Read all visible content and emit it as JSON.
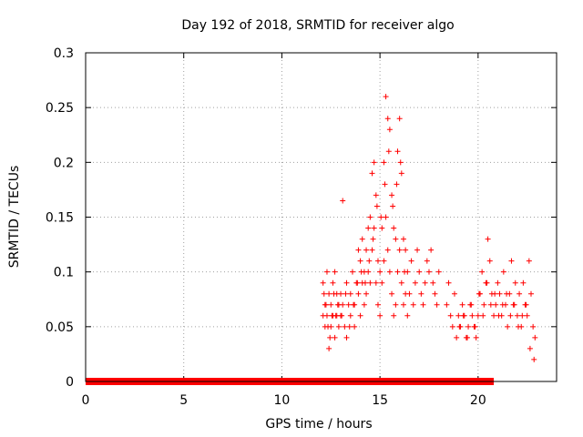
{
  "chart_data": {
    "type": "scatter",
    "title": "Day 192 of 2018, SRMTID for receiver algo",
    "xlabel": "GPS time / hours",
    "ylabel": "SRMTID / TECUs",
    "xlim": [
      0,
      24
    ],
    "ylim": [
      0,
      0.3
    ],
    "xticks": [
      0,
      5,
      10,
      15,
      20
    ],
    "yticks": [
      0,
      0.05,
      0.1,
      0.15,
      0.2,
      0.25,
      0.3
    ],
    "xtick_labels": [
      "0",
      "5",
      "10",
      "15",
      "20"
    ],
    "ytick_labels": [
      "0",
      "0.05",
      "0.1",
      "0.15",
      "0.2",
      "0.25",
      "0.3"
    ],
    "grid": true,
    "marker": "+",
    "color": "#ff0000",
    "zero_band": [
      0,
      20.8
    ],
    "series": [
      {
        "name": "SRMTID",
        "x": [
          12.1,
          12.1,
          12.2,
          12.2,
          12.3,
          12.3,
          12.4,
          12.4,
          12.5,
          12.5,
          12.6,
          12.6,
          12.7,
          12.7,
          12.8,
          12.8,
          12.9,
          12.9,
          13.0,
          13.0,
          13.1,
          13.1,
          13.2,
          13.3,
          13.3,
          13.4,
          13.5,
          13.5,
          13.6,
          13.7,
          13.7,
          13.8,
          13.9,
          13.9,
          14.0,
          14.0,
          14.1,
          14.1,
          14.2,
          14.2,
          14.3,
          14.3,
          14.4,
          14.4,
          14.5,
          14.5,
          14.6,
          14.6,
          14.7,
          14.7,
          14.8,
          14.8,
          14.9,
          14.9,
          15.0,
          15.0,
          15.1,
          15.1,
          15.2,
          15.2,
          15.3,
          15.3,
          15.4,
          15.4,
          15.5,
          15.5,
          15.6,
          15.6,
          15.7,
          15.7,
          15.8,
          15.8,
          15.9,
          15.9,
          16.0,
          16.0,
          16.1,
          16.1,
          16.2,
          16.2,
          16.3,
          16.3,
          16.4,
          16.4,
          16.5,
          16.6,
          16.7,
          16.8,
          16.9,
          17.0,
          17.1,
          17.2,
          17.3,
          17.4,
          17.5,
          17.6,
          17.7,
          17.8,
          17.9,
          18.0,
          18.4,
          18.5,
          18.6,
          18.7,
          18.8,
          18.9,
          19.0,
          19.1,
          19.2,
          19.3,
          19.4,
          19.5,
          19.6,
          19.7,
          19.8,
          19.9,
          20.0,
          20.1,
          20.2,
          20.3,
          20.4,
          20.5,
          20.6,
          20.7,
          20.8,
          20.9,
          21.0,
          21.1,
          21.2,
          21.3,
          21.4,
          21.5,
          21.6,
          21.7,
          21.8,
          21.9,
          22.0,
          22.1,
          22.2,
          22.3,
          22.4,
          22.5,
          22.6,
          22.7,
          22.8,
          22.9,
          12.15,
          12.25,
          12.35,
          12.45,
          12.55,
          12.65,
          12.75,
          12.85,
          13.05,
          13.25,
          13.45,
          13.65,
          13.85,
          14.05,
          14.25,
          14.45,
          14.65,
          14.85,
          15.05,
          15.25,
          15.45,
          15.65,
          15.85,
          16.05,
          16.25,
          19.05,
          19.25,
          19.45,
          19.65,
          19.85,
          20.05,
          20.25,
          20.45,
          20.65,
          20.85,
          21.05,
          21.25,
          21.45,
          21.65,
          21.85,
          22.05,
          22.25,
          22.45,
          22.65,
          22.85
        ],
        "y": [
          0.06,
          0.09,
          0.07,
          0.05,
          0.1,
          0.06,
          0.03,
          0.08,
          0.05,
          0.07,
          0.09,
          0.06,
          0.1,
          0.04,
          0.08,
          0.06,
          0.07,
          0.05,
          0.08,
          0.06,
          0.165,
          0.07,
          0.05,
          0.09,
          0.04,
          0.07,
          0.08,
          0.06,
          0.1,
          0.07,
          0.05,
          0.09,
          0.12,
          0.08,
          0.11,
          0.06,
          0.13,
          0.09,
          0.1,
          0.07,
          0.12,
          0.08,
          0.14,
          0.1,
          0.15,
          0.09,
          0.19,
          0.12,
          0.2,
          0.14,
          0.17,
          0.09,
          0.11,
          0.07,
          0.1,
          0.06,
          0.14,
          0.09,
          0.2,
          0.11,
          0.26,
          0.15,
          0.24,
          0.12,
          0.23,
          0.1,
          0.17,
          0.08,
          0.14,
          0.06,
          0.13,
          0.07,
          0.21,
          0.1,
          0.24,
          0.12,
          0.19,
          0.09,
          0.13,
          0.07,
          0.12,
          0.08,
          0.1,
          0.06,
          0.08,
          0.11,
          0.07,
          0.09,
          0.12,
          0.1,
          0.08,
          0.07,
          0.09,
          0.11,
          0.1,
          0.12,
          0.09,
          0.08,
          0.07,
          0.1,
          0.07,
          0.09,
          0.06,
          0.05,
          0.08,
          0.04,
          0.06,
          0.05,
          0.07,
          0.06,
          0.04,
          0.05,
          0.07,
          0.06,
          0.05,
          0.04,
          0.06,
          0.08,
          0.1,
          0.07,
          0.09,
          0.13,
          0.11,
          0.08,
          0.06,
          0.07,
          0.09,
          0.08,
          0.06,
          0.1,
          0.07,
          0.05,
          0.08,
          0.11,
          0.07,
          0.09,
          0.06,
          0.08,
          0.05,
          0.09,
          0.07,
          0.06,
          0.11,
          0.08,
          0.05,
          0.04,
          0.08,
          0.07,
          0.05,
          0.04,
          0.06,
          0.08,
          0.06,
          0.07,
          0.06,
          0.08,
          0.05,
          0.07,
          0.09,
          0.1,
          0.09,
          0.11,
          0.13,
          0.16,
          0.15,
          0.18,
          0.21,
          0.16,
          0.18,
          0.2,
          0.1,
          0.05,
          0.06,
          0.04,
          0.07,
          0.05,
          0.08,
          0.06,
          0.09,
          0.07,
          0.08,
          0.06,
          0.07,
          0.08,
          0.06,
          0.07,
          0.05,
          0.06,
          0.07,
          0.03,
          0.02
        ]
      }
    ]
  }
}
